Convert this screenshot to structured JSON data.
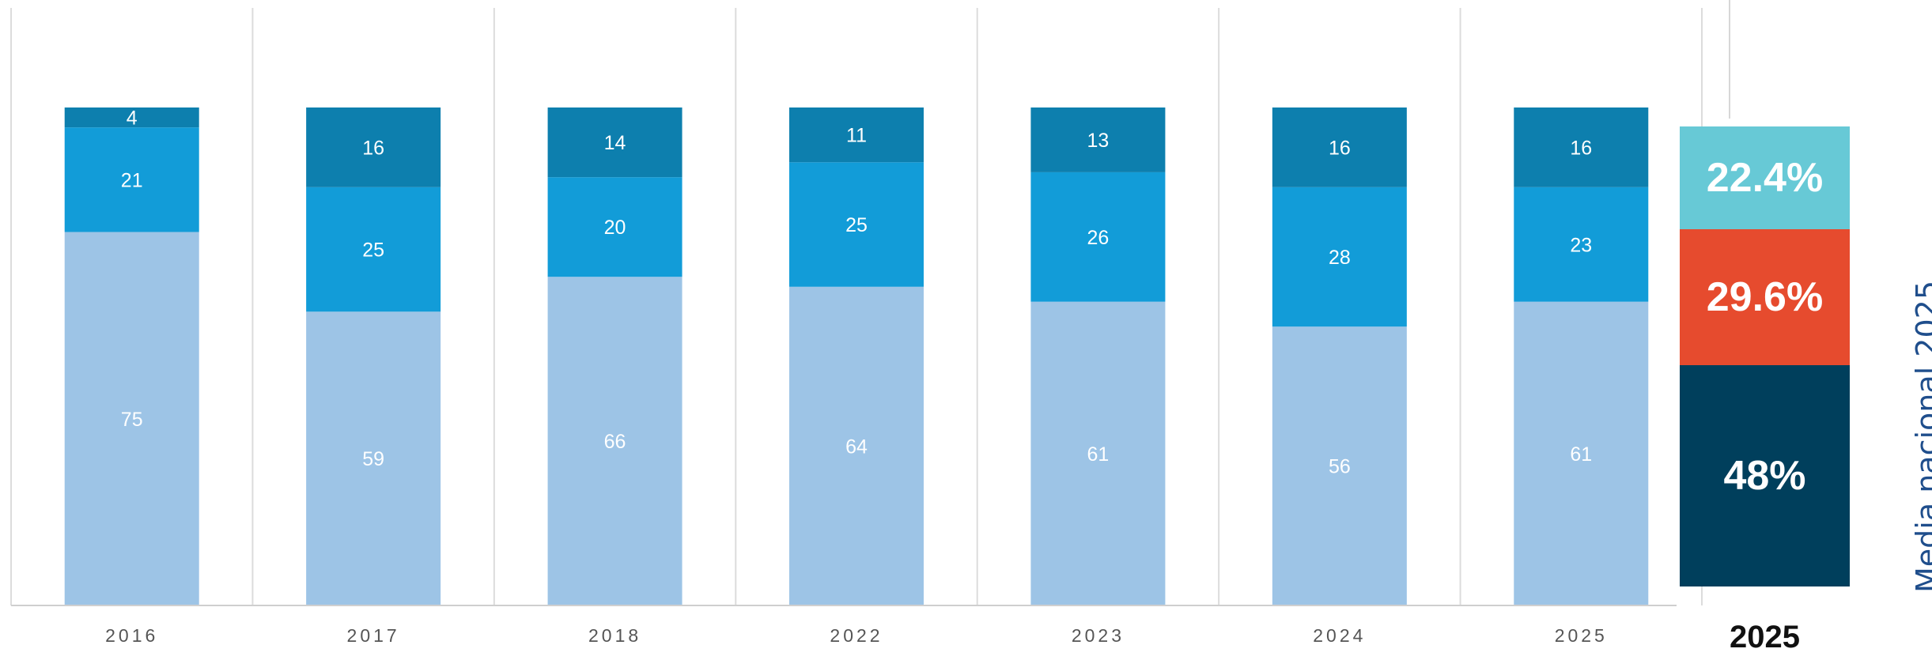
{
  "chart_data": {
    "type": "bar",
    "stacked": true,
    "categories": [
      "2016",
      "2017",
      "2018",
      "2022",
      "2023",
      "2024",
      "2025"
    ],
    "series": [
      {
        "values": [
          75,
          59,
          66,
          64,
          61,
          56,
          61
        ],
        "color": "#9dc4e6"
      },
      {
        "values": [
          21,
          25,
          20,
          25,
          26,
          28,
          23
        ],
        "color": "#129cd8"
      },
      {
        "values": [
          4,
          16,
          14,
          11,
          13,
          16,
          16
        ],
        "color": "#0d7fae"
      }
    ],
    "grid": "vertical separators between categories"
  },
  "national_average": {
    "title": "Media nacional 2025",
    "year_label": "2025",
    "segments": [
      {
        "label": "22.4%",
        "value": 22.4,
        "color": "#67c9d6"
      },
      {
        "label": "29.6%",
        "value": 29.6,
        "color": "#e64b2e"
      },
      {
        "label": "48%",
        "value": 48,
        "color": "#003f5c"
      }
    ]
  }
}
